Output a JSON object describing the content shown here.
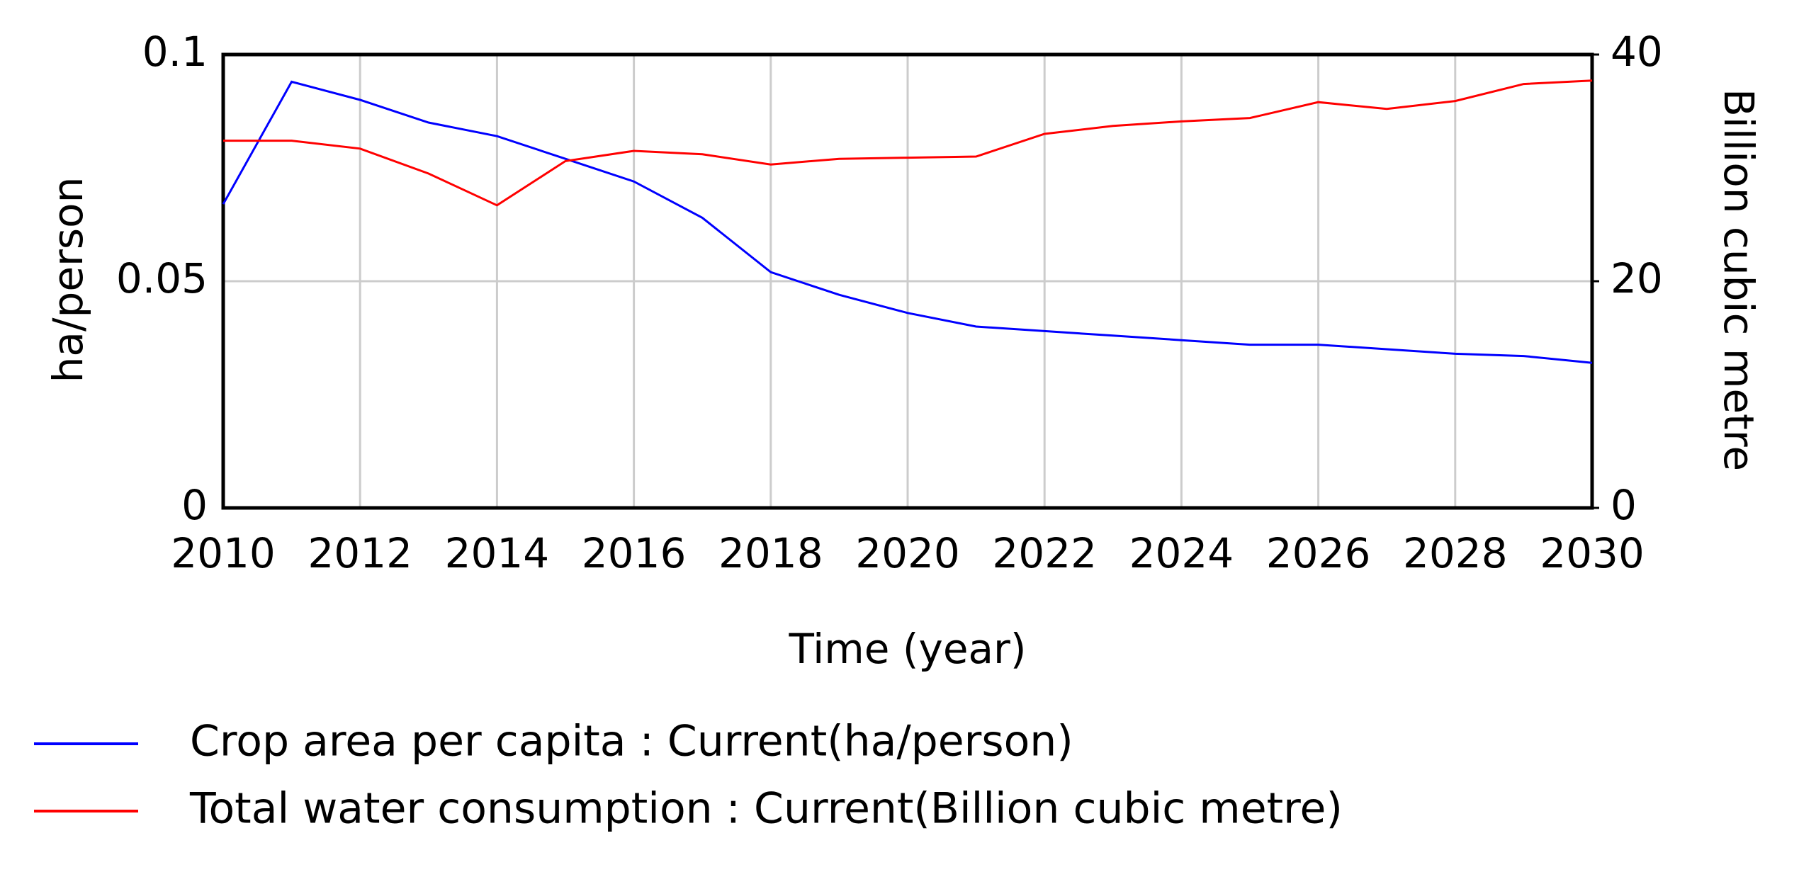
{
  "chart_data": {
    "type": "line",
    "x": [
      2010,
      2011,
      2012,
      2013,
      2014,
      2015,
      2016,
      2017,
      2018,
      2019,
      2020,
      2021,
      2022,
      2023,
      2024,
      2025,
      2026,
      2027,
      2028,
      2029,
      2030
    ],
    "series": [
      {
        "name": "Crop area per capita : Current(ha/person)",
        "color": "#0000ff",
        "values": [
          0.067,
          0.094,
          0.09,
          0.085,
          0.082,
          0.077,
          0.072,
          0.064,
          0.052,
          0.047,
          0.043,
          0.04,
          0.039,
          0.038,
          0.037,
          0.036,
          0.036,
          0.035,
          0.034,
          0.0335,
          0.032
        ]
      },
      {
        "name": "Total water consumption : Current(Billion cubic metre)",
        "color": "#ff0000",
        "axis": "y2",
        "values": [
          32.4,
          32.4,
          31.7,
          29.5,
          26.7,
          30.6,
          31.5,
          31.2,
          30.3,
          30.8,
          30.9,
          31.0,
          33.0,
          33.7,
          34.1,
          34.4,
          35.8,
          35.2,
          35.9,
          37.4,
          37.7
        ]
      }
    ],
    "xlabel": "Time (year)",
    "ylabel": "ha/person",
    "y2label": "Billion cubic metre",
    "xlim": [
      2010,
      2030
    ],
    "xticks": [
      2010,
      2012,
      2014,
      2016,
      2018,
      2020,
      2022,
      2024,
      2026,
      2028,
      2030
    ],
    "ylim": [
      0,
      0.1
    ],
    "yticks": [
      0,
      0.05,
      0.1
    ],
    "y2lim": [
      0,
      40
    ],
    "y2ticks": [
      0,
      20,
      40
    ],
    "grid": true
  }
}
